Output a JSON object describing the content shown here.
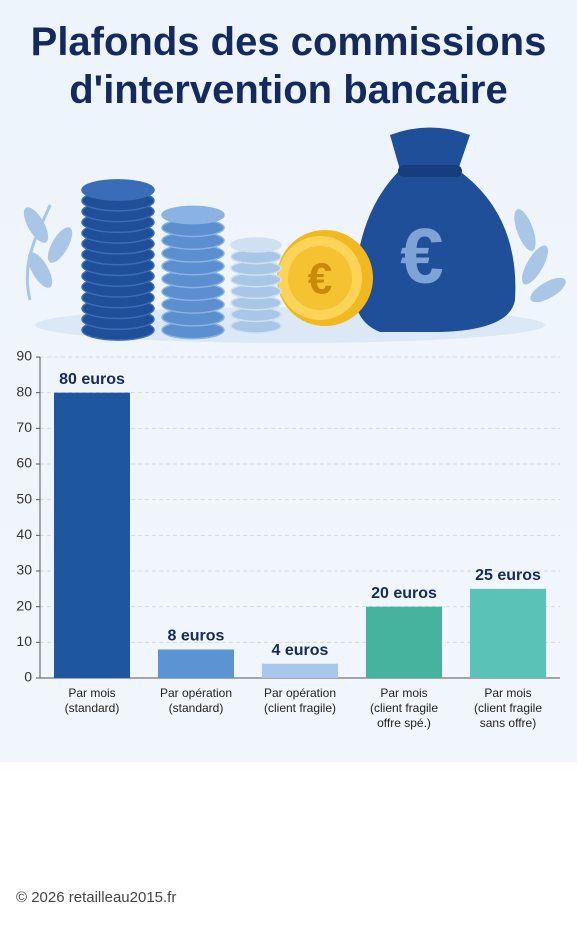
{
  "chart_data": {
    "type": "bar",
    "title": "Plafonds des commissions\nd'intervention bancaire",
    "categories": [
      "Par mois\n(standard)",
      "Par opération\n(standard)",
      "Par opération\n(client fragile)",
      "Par mois\n(client fragile\noffre spé.)",
      "Par mois\n(client fragile\nsans offre)"
    ],
    "values": [
      80,
      8,
      4,
      20,
      25
    ],
    "value_labels": [
      "80 euros",
      "8 euros",
      "4 euros",
      "20 euros",
      "25 euros"
    ],
    "colors": [
      "#1f56a0",
      "#5b93d3",
      "#a7c8ec",
      "#46b39e",
      "#5bc2b8"
    ],
    "ylim": [
      0,
      90
    ],
    "yticks": [
      0,
      10,
      20,
      30,
      40,
      50,
      60,
      70,
      80,
      90
    ],
    "grid": true
  },
  "footer": "© 2026 retailleau2015.fr"
}
